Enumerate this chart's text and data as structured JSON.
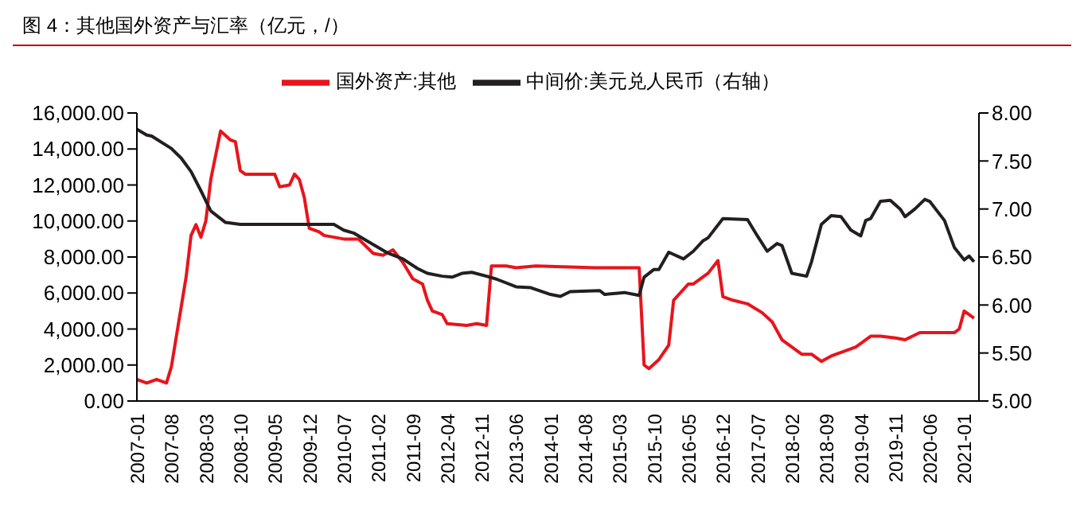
{
  "chart_data": {
    "type": "line",
    "title": "图 4：其他国外资产与汇率（亿元，/）",
    "legend": "top",
    "marker": "none",
    "line_style": "solid",
    "xlim": [
      "2007-01",
      "2021-04"
    ],
    "xticks": [
      {
        "value": "2007-01",
        "label": "2007-01"
      },
      {
        "value": "2007-08",
        "label": "2007-08"
      },
      {
        "value": "2008-03",
        "label": "2008-03"
      },
      {
        "value": "2008-10",
        "label": "2008-10"
      },
      {
        "value": "2009-05",
        "label": "2009-05"
      },
      {
        "value": "2009-12",
        "label": "2009-12"
      },
      {
        "value": "2010-07",
        "label": "2010-07"
      },
      {
        "value": "2011-02",
        "label": "2011-02"
      },
      {
        "value": "2011-09",
        "label": "2011-09"
      },
      {
        "value": "2012-04",
        "label": "2012-04"
      },
      {
        "value": "2012-11",
        "label": "2012-11"
      },
      {
        "value": "2013-06",
        "label": "2013-06"
      },
      {
        "value": "2014-01",
        "label": "2014-01"
      },
      {
        "value": "2014-08",
        "label": "2014-08"
      },
      {
        "value": "2015-03",
        "label": "2015-03"
      },
      {
        "value": "2015-10",
        "label": "2015-10"
      },
      {
        "value": "2016-05",
        "label": "2016-05"
      },
      {
        "value": "2016-12",
        "label": "2016-12"
      },
      {
        "value": "2017-07",
        "label": "2017-07"
      },
      {
        "value": "2018-02",
        "label": "2018-02"
      },
      {
        "value": "2018-09",
        "label": "2018-09"
      },
      {
        "value": "2019-04",
        "label": "2019-04"
      },
      {
        "value": "2019-11",
        "label": "2019-11"
      },
      {
        "value": "2020-06",
        "label": "2020-06"
      },
      {
        "value": "2021-01",
        "label": "2021-01"
      }
    ],
    "ylim": [
      0,
      16000
    ],
    "yticks": [
      {
        "value": 0,
        "label": "0.00"
      },
      {
        "value": 2000,
        "label": "2,000.00"
      },
      {
        "value": 4000,
        "label": "4,000.00"
      },
      {
        "value": 6000,
        "label": "6,000.00"
      },
      {
        "value": 8000,
        "label": "8,000.00"
      },
      {
        "value": 10000,
        "label": "10,000.00"
      },
      {
        "value": 12000,
        "label": "12,000.00"
      },
      {
        "value": 14000,
        "label": "14,000.00"
      },
      {
        "value": 16000,
        "label": "16,000.00"
      }
    ],
    "y2lim": [
      5,
      8
    ],
    "y2ticks": [
      {
        "value": 5,
        "label": "5.00"
      },
      {
        "value": 5.5,
        "label": "5.50"
      },
      {
        "value": 6,
        "label": "6.00"
      },
      {
        "value": 6.5,
        "label": "6.50"
      },
      {
        "value": 7,
        "label": "7.00"
      },
      {
        "value": 7.5,
        "label": "7.50"
      },
      {
        "value": 8,
        "label": "8.00"
      }
    ],
    "series": [
      {
        "name": "国外资产:其他",
        "color": "#e8141c",
        "x": [
          "2007-01",
          "2007-03",
          "2007-05",
          "2007-07",
          "2007-08",
          "2007-11",
          "2007-12",
          "2008-01",
          "2008-02",
          "2008-03",
          "2008-04",
          "2008-06",
          "2008-08",
          "2008-09",
          "2008-10",
          "2008-11",
          "2009-05",
          "2009-06",
          "2009-08",
          "2009-09",
          "2009-10",
          "2009-11",
          "2009-12",
          "2010-02",
          "2010-03",
          "2010-07",
          "2010-10",
          "2011-01",
          "2011-03",
          "2011-05",
          "2011-07",
          "2011-09",
          "2011-11",
          "2011-12",
          "2012-01",
          "2012-03",
          "2012-04",
          "2012-08",
          "2012-10",
          "2012-12",
          "2013-01",
          "2013-04",
          "2013-06",
          "2013-10",
          "2014-10",
          "2015-07",
          "2015-08",
          "2015-09",
          "2015-11",
          "2016-01",
          "2016-02",
          "2016-03",
          "2016-05",
          "2016-06",
          "2016-09",
          "2016-11",
          "2016-12",
          "2017-02",
          "2017-05",
          "2017-08",
          "2017-10",
          "2017-12",
          "2018-04",
          "2018-06",
          "2018-08",
          "2018-10",
          "2019-03",
          "2019-06",
          "2019-08",
          "2019-11",
          "2020-01",
          "2020-04",
          "2020-11",
          "2020-12",
          "2021-01",
          "2021-03"
        ],
        "values": [
          1200,
          1000,
          1200,
          1000,
          1900,
          6900,
          9200,
          9800,
          9100,
          10000,
          12300,
          15000,
          14500,
          14400,
          12800,
          12600,
          12600,
          11900,
          12000,
          12600,
          12300,
          11300,
          9600,
          9400,
          9200,
          9000,
          9000,
          8200,
          8100,
          8400,
          7700,
          6800,
          6500,
          5600,
          5000,
          4800,
          4300,
          4200,
          4300,
          4200,
          7500,
          7500,
          7400,
          7500,
          7400,
          7400,
          2000,
          1800,
          2300,
          3100,
          5600,
          5900,
          6500,
          6500,
          7100,
          7800,
          5800,
          5600,
          5400,
          4900,
          4400,
          3400,
          2600,
          2600,
          2200,
          2500,
          3000,
          3600,
          3600,
          3500,
          3400,
          3800,
          3800,
          4000,
          5000,
          4600
        ]
      },
      {
        "name": "中间价:美元兑人民币（右轴）",
        "color": "#231f20",
        "axis": "y2",
        "x": [
          "2007-01",
          "2007-03",
          "2007-04",
          "2007-08",
          "2007-10",
          "2007-12",
          "2008-02",
          "2008-04",
          "2008-07",
          "2008-10",
          "2010-05",
          "2010-07",
          "2010-09",
          "2010-12",
          "2011-02",
          "2011-04",
          "2011-07",
          "2011-10",
          "2011-12",
          "2012-03",
          "2012-05",
          "2012-07",
          "2012-09",
          "2012-12",
          "2013-02",
          "2013-06",
          "2013-09",
          "2014-01",
          "2014-03",
          "2014-05",
          "2014-11",
          "2014-12",
          "2015-04",
          "2015-07",
          "2015-08",
          "2015-10",
          "2015-11",
          "2016-01",
          "2016-04",
          "2016-06",
          "2016-08",
          "2016-09",
          "2016-12",
          "2017-05",
          "2017-07",
          "2017-09",
          "2017-11",
          "2017-12",
          "2018-02",
          "2018-05",
          "2018-06",
          "2018-08",
          "2018-10",
          "2018-12",
          "2019-02",
          "2019-04",
          "2019-05",
          "2019-06",
          "2019-08",
          "2019-10",
          "2019-12",
          "2020-01",
          "2020-03",
          "2020-05",
          "2020-06",
          "2020-09",
          "2020-11",
          "2021-01",
          "2021-02",
          "2021-03"
        ],
        "values": [
          7.83,
          7.77,
          7.76,
          7.63,
          7.53,
          7.39,
          7.19,
          6.98,
          6.86,
          6.84,
          6.84,
          6.78,
          6.75,
          6.66,
          6.6,
          6.54,
          6.48,
          6.38,
          6.33,
          6.3,
          6.29,
          6.33,
          6.34,
          6.3,
          6.27,
          6.19,
          6.18,
          6.11,
          6.09,
          6.14,
          6.15,
          6.11,
          6.13,
          6.1,
          6.29,
          6.37,
          6.37,
          6.55,
          6.48,
          6.56,
          6.67,
          6.7,
          6.9,
          6.89,
          6.72,
          6.56,
          6.64,
          6.62,
          6.33,
          6.3,
          6.45,
          6.84,
          6.93,
          6.92,
          6.78,
          6.72,
          6.88,
          6.9,
          7.08,
          7.09,
          7,
          6.92,
          7,
          7.1,
          7.08,
          6.88,
          6.6,
          6.47,
          6.51,
          6.45
        ]
      }
    ]
  }
}
